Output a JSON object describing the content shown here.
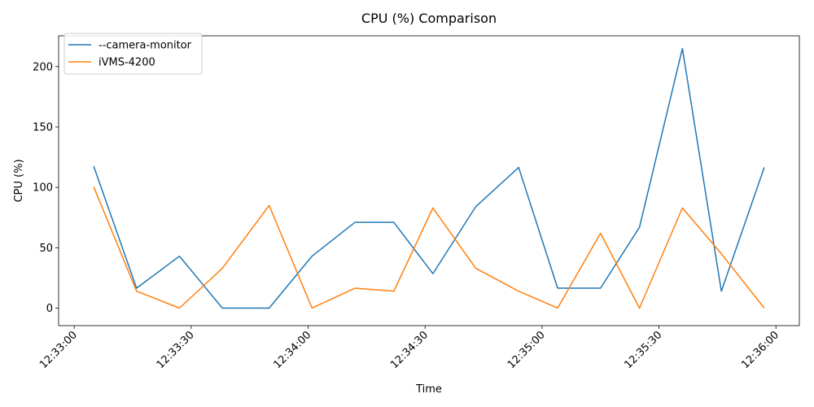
{
  "chart_data": {
    "type": "line",
    "title": "CPU (%) Comparison",
    "xlabel": "Time",
    "ylabel": "CPU (%)",
    "x_ticks": [
      "12:33:00",
      "12:33:30",
      "12:34:00",
      "12:34:30",
      "12:35:00",
      "12:35:30",
      "12:36:00"
    ],
    "y_ticks": [
      0,
      50,
      100,
      150,
      200
    ],
    "xlim": [
      "12:32:56",
      "12:36:06"
    ],
    "ylim": [
      -14.5,
      225.5
    ],
    "grid": false,
    "legend_position": "upper left",
    "series": [
      {
        "name": "--camera-monitor",
        "color": "#1f77b4",
        "x": [
          "12:33:05",
          "12:33:16",
          "12:33:27",
          "12:33:38",
          "12:33:50",
          "12:34:01",
          "12:34:12",
          "12:34:22",
          "12:34:32",
          "12:34:43",
          "12:34:54",
          "12:35:04",
          "12:35:15",
          "12:35:25",
          "12:35:36",
          "12:35:46",
          "12:35:57"
        ],
        "values": [
          117.5,
          16.5,
          43,
          0,
          0,
          43,
          71,
          71,
          28.5,
          84,
          116.5,
          16.5,
          16.5,
          67,
          215,
          14,
          116.5
        ]
      },
      {
        "name": "iVMS-4200",
        "color": "#ff7f0e",
        "x": [
          "12:33:05",
          "12:33:16",
          "12:33:27",
          "12:33:38",
          "12:33:50",
          "12:34:01",
          "12:34:12",
          "12:34:22",
          "12:34:32",
          "12:34:43",
          "12:34:54",
          "12:35:04",
          "12:35:15",
          "12:35:25",
          "12:35:36",
          "12:35:46",
          "12:35:57"
        ],
        "values": [
          100.5,
          14,
          0,
          33,
          85,
          0,
          16.5,
          14,
          83,
          33,
          14,
          0,
          62,
          0,
          83,
          45,
          0
        ]
      }
    ]
  }
}
